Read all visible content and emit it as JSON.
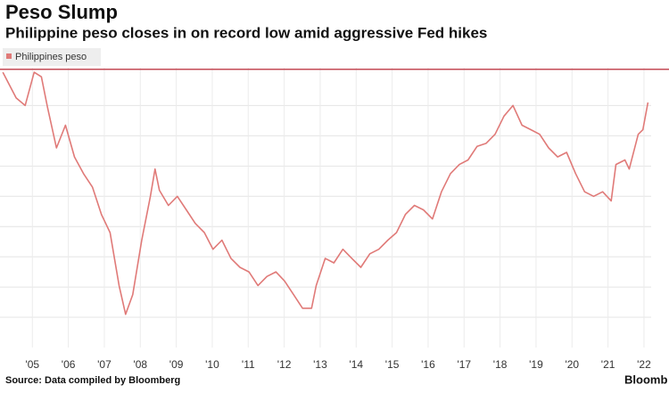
{
  "chart_data": {
    "type": "line",
    "title": "Peso Slump",
    "subtitle": "Philippine peso closes in on record low amid aggressive Fed hikes",
    "source": "Source: Data compiled by Bloomberg",
    "logo": "Bloomb",
    "x": [
      2004.18,
      2004.55,
      2004.8,
      2005.05,
      2005.25,
      2005.42,
      2005.67,
      2005.92,
      2006.17,
      2006.42,
      2006.67,
      2006.92,
      2007.16,
      2007.41,
      2007.59,
      2007.79,
      2008.04,
      2008.28,
      2008.41,
      2008.53,
      2008.78,
      2009.03,
      2009.28,
      2009.53,
      2009.78,
      2010.02,
      2010.27,
      2010.52,
      2010.77,
      2011.02,
      2011.27,
      2011.52,
      2011.77,
      2012.01,
      2012.26,
      2012.51,
      2012.76,
      2012.89,
      2013.14,
      2013.38,
      2013.63,
      2013.88,
      2014.13,
      2014.38,
      2014.63,
      2014.88,
      2015.12,
      2015.37,
      2015.62,
      2015.87,
      2016.12,
      2016.37,
      2016.62,
      2016.87,
      2017.11,
      2017.36,
      2017.61,
      2017.86,
      2018.11,
      2018.36,
      2018.61,
      2018.86,
      2019.1,
      2019.35,
      2019.6,
      2019.85,
      2020.1,
      2020.35,
      2020.6,
      2020.85,
      2021.09,
      2021.22,
      2021.47,
      2021.59,
      2021.84,
      2021.97,
      2022.11
    ],
    "series": [
      {
        "name": "Philippines peso",
        "color": "#e07a78",
        "values": [
          56.2,
          54.5,
          54.0,
          56.2,
          55.9,
          53.9,
          51.2,
          52.7,
          50.6,
          49.5,
          48.6,
          46.8,
          45.6,
          42.1,
          40.2,
          41.5,
          45.1,
          48.0,
          49.8,
          48.4,
          47.4,
          48.0,
          47.1,
          46.2,
          45.6,
          44.5,
          45.1,
          43.9,
          43.3,
          43.0,
          42.1,
          42.7,
          43.0,
          42.4,
          41.5,
          40.6,
          40.6,
          42.1,
          43.9,
          43.6,
          44.5,
          43.9,
          43.3,
          44.2,
          44.5,
          45.1,
          45.6,
          46.8,
          47.4,
          47.1,
          46.5,
          48.3,
          49.5,
          50.1,
          50.4,
          51.3,
          51.5,
          52.1,
          53.3,
          54.0,
          52.7,
          52.4,
          52.1,
          51.2,
          50.6,
          50.9,
          49.5,
          48.3,
          48.0,
          48.3,
          47.7,
          50.1,
          50.4,
          49.8,
          52.1,
          52.4,
          54.2
        ]
      }
    ],
    "reference_line": {
      "value": 56.4,
      "color": "#c44a55"
    },
    "xlim": [
      2004.1,
      2022.2
    ],
    "xticks": [
      {
        "value": 2005,
        "label": "'05"
      },
      {
        "value": 2006,
        "label": "'06"
      },
      {
        "value": 2007,
        "label": "'07"
      },
      {
        "value": 2008,
        "label": "'08"
      },
      {
        "value": 2009,
        "label": "'09"
      },
      {
        "value": 2010,
        "label": "'10"
      },
      {
        "value": 2011,
        "label": "'11"
      },
      {
        "value": 2012,
        "label": "'12"
      },
      {
        "value": 2013,
        "label": "'13"
      },
      {
        "value": 2014,
        "label": "'14"
      },
      {
        "value": 2015,
        "label": "'15"
      },
      {
        "value": 2016,
        "label": "'16"
      },
      {
        "value": 2017,
        "label": "'17"
      },
      {
        "value": 2018,
        "label": "'18"
      },
      {
        "value": 2019,
        "label": "'19"
      },
      {
        "value": 2020,
        "label": "'20"
      },
      {
        "value": 2021,
        "label": "'21"
      },
      {
        "value": 2022,
        "label": "'22"
      }
    ],
    "ylim": [
      38,
      56.5
    ],
    "yticks": [
      40,
      42,
      44,
      46,
      48,
      50,
      52,
      54
    ],
    "grid": true
  }
}
